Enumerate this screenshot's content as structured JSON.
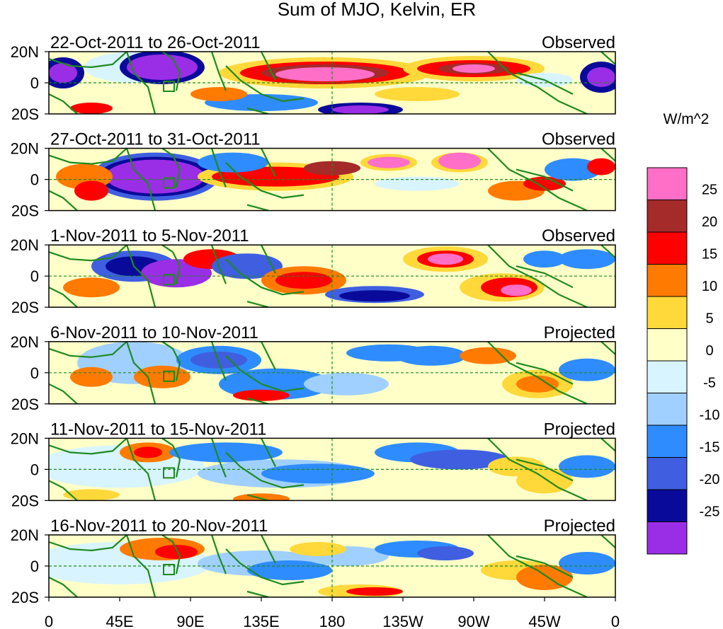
{
  "title": "Sum of MJO, Kelvin, ER",
  "colorbar": {
    "unit_label": "W/m^2",
    "tick_labels": [
      "25",
      "20",
      "15",
      "10",
      "5",
      "0",
      "-5",
      "-10",
      "-15",
      "-20",
      "-25"
    ],
    "colors": [
      "#ff6ec7",
      "#a52a2a",
      "#ff0000",
      "#ff7a00",
      "#ffd83a",
      "#ffffc8",
      "#d8f4ff",
      "#a0d0ff",
      "#2e8cff",
      "#3f5fe0",
      "#0a0a9a",
      "#9a2ee6"
    ]
  },
  "y_tick_labels": [
    "20N",
    "0",
    "20S"
  ],
  "x_tick_labels": [
    "0",
    "45E",
    "90E",
    "135E",
    "180",
    "135W",
    "90W",
    "45W",
    "0"
  ],
  "panels": [
    {
      "date_range": "22-Oct-2011 to 26-Oct-2011",
      "type": "Observed"
    },
    {
      "date_range": "27-Oct-2011 to 31-Oct-2011",
      "type": "Observed"
    },
    {
      "date_range": "1-Nov-2011 to 5-Nov-2011",
      "type": "Observed"
    },
    {
      "date_range": "6-Nov-2011 to 10-Nov-2011",
      "type": "Projected"
    },
    {
      "date_range": "11-Nov-2011 to 15-Nov-2011",
      "type": "Projected"
    },
    {
      "date_range": "16-Nov-2011 to 20-Nov-2011",
      "type": "Projected"
    }
  ],
  "colors": {
    "land_outline": "#1e8a1e",
    "reference_lines": "#1e8a1e",
    "frame": "#000000",
    "background": "#ffffff"
  }
}
